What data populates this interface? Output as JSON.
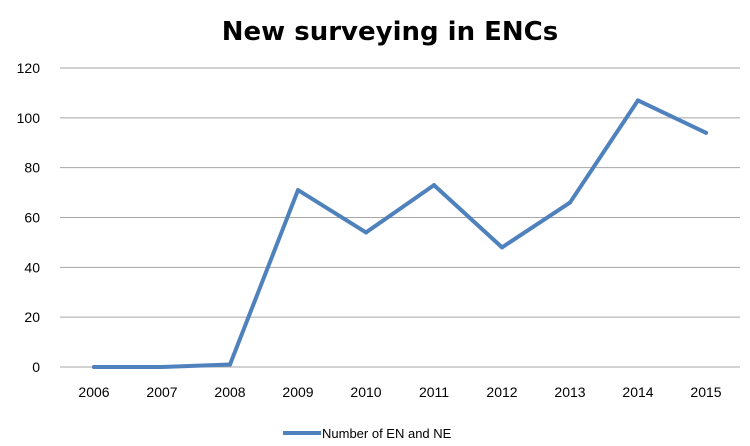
{
  "chart_data": {
    "type": "line",
    "title": "New surveying in ENCs",
    "xlabel": "",
    "ylabel": "",
    "categories": [
      "2006",
      "2007",
      "2008",
      "2009",
      "2010",
      "2011",
      "2012",
      "2013",
      "2014",
      "2015"
    ],
    "series": [
      {
        "name": "Number of EN and NE",
        "values": [
          0,
          0,
          1,
          71,
          54,
          73,
          48,
          66,
          107,
          94
        ],
        "color": "#4f81bd"
      }
    ],
    "ylim": [
      0,
      120
    ],
    "yticks": [
      0,
      20,
      40,
      60,
      80,
      100,
      120
    ],
    "grid": true,
    "legend_position": "bottom"
  }
}
